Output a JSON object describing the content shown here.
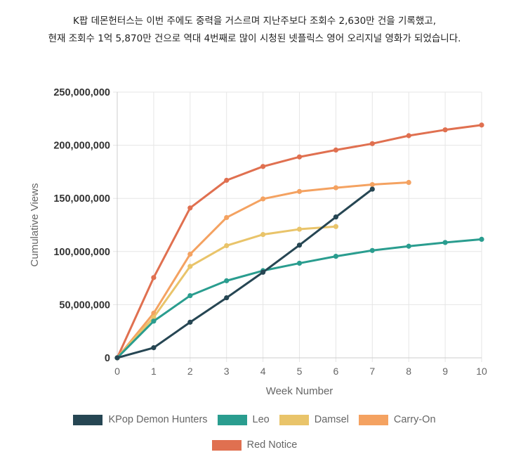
{
  "caption": {
    "line1": "K팝 데몬헌터스는 이번 주에도 중력을 거스르며 지난주보다 조회수 2,630만 건을 기록했고,",
    "line2": "현재 조회수 1억 5,870만 건으로 역대 4번째로 많이 시청된 넷플릭스 영어 오리지널 영화가 되었습니다."
  },
  "chart_data": {
    "type": "line",
    "xlabel": "Week Number",
    "ylabel": "Cumulative Views",
    "xlim": [
      0,
      10
    ],
    "ylim": [
      0,
      250000000
    ],
    "x_ticks": [
      "0",
      "1",
      "2",
      "3",
      "4",
      "5",
      "6",
      "7",
      "8",
      "9",
      "10"
    ],
    "y_ticks": [
      "0",
      "50,000,000",
      "100,000,000",
      "150,000,000",
      "200,000,000",
      "250,000,000"
    ],
    "grid": true,
    "legend_position": "bottom",
    "series": [
      {
        "name": "Red Notice",
        "color": "#e07050",
        "x": [
          0,
          1,
          2,
          3,
          4,
          5,
          6,
          7,
          8,
          9,
          10
        ],
        "values": [
          0,
          75500000,
          141000000,
          167000000,
          180000000,
          189000000,
          195500000,
          201500000,
          209000000,
          214500000,
          219000000
        ]
      },
      {
        "name": "Carry-On",
        "color": "#f4a261",
        "x": [
          0,
          1,
          2,
          3,
          4,
          5,
          6,
          7,
          8
        ],
        "values": [
          0,
          42000000,
          97500000,
          132000000,
          149500000,
          156500000,
          160000000,
          163000000,
          165000000
        ]
      },
      {
        "name": "Damsel",
        "color": "#e9c46a",
        "x": [
          0,
          1,
          2,
          3,
          4,
          5,
          6
        ],
        "values": [
          0,
          38000000,
          86000000,
          105500000,
          116000000,
          121000000,
          123500000
        ]
      },
      {
        "name": "Leo",
        "color": "#2a9d8f",
        "x": [
          0,
          1,
          2,
          3,
          4,
          5,
          6,
          7,
          8,
          9,
          10
        ],
        "values": [
          0,
          34500000,
          58500000,
          72500000,
          82000000,
          89000000,
          95500000,
          101000000,
          105000000,
          108500000,
          111500000
        ]
      },
      {
        "name": "KPop Demon Hunters",
        "color": "#264653",
        "x": [
          0,
          1,
          2,
          3,
          4,
          5,
          6,
          7
        ],
        "values": [
          0,
          9500000,
          33500000,
          56500000,
          80500000,
          106000000,
          132500000,
          158700000
        ]
      }
    ],
    "legend_order": [
      [
        "KPop Demon Hunters",
        "Leo",
        "Damsel",
        "Carry-On"
      ],
      [
        "Red Notice"
      ]
    ]
  }
}
